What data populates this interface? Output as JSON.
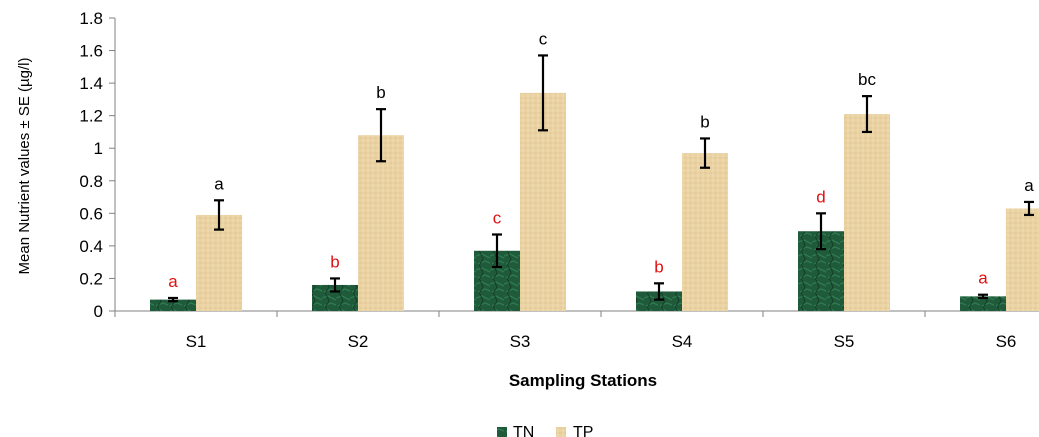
{
  "chart_data": {
    "type": "bar",
    "title": "",
    "xlabel": "Sampling Stations",
    "ylabel": "Mean Nutrient values ± SE (µg/l)",
    "ylim": [
      0,
      1.8
    ],
    "yticks": [
      "0",
      "0.2",
      "0.4",
      "0.6",
      "0.8",
      "1",
      "1.2",
      "1.4",
      "1.6",
      "1.8"
    ],
    "categories": [
      "S1",
      "S2",
      "S3",
      "S4",
      "S5",
      "S6"
    ],
    "grid": false,
    "legend_position": "bottom",
    "series": [
      {
        "name": "TN",
        "color": "#1f5a3a",
        "values": [
          0.07,
          0.16,
          0.37,
          0.12,
          0.49,
          0.09
        ],
        "error": [
          0.01,
          0.04,
          0.1,
          0.05,
          0.11,
          0.01
        ],
        "letters": [
          "a",
          "b",
          "c",
          "b",
          "d",
          "a"
        ],
        "letter_color": "#e01010"
      },
      {
        "name": "TP",
        "color": "#ead2a2",
        "values": [
          0.59,
          1.08,
          1.34,
          0.97,
          1.21,
          0.63
        ],
        "error": [
          0.09,
          0.16,
          0.23,
          0.09,
          0.11,
          0.04
        ],
        "letters": [
          "a",
          "b",
          "c",
          "b",
          "bc",
          "a"
        ],
        "letter_color": "#000000"
      }
    ]
  }
}
